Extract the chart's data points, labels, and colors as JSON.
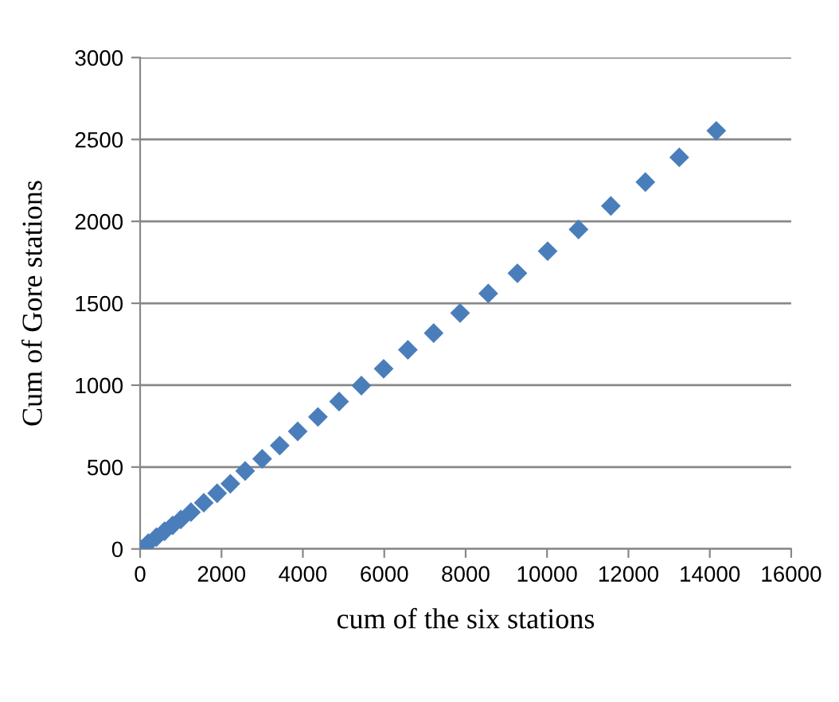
{
  "chart_data": {
    "type": "scatter",
    "xlabel": "cum of the six stations",
    "ylabel": "Cum of Gore stations",
    "x": [
      0,
      200,
      400,
      600,
      800,
      1000,
      1250,
      1565,
      1893,
      2218,
      2582,
      3000,
      3431,
      3873,
      4370,
      4890,
      5438,
      5985,
      6580,
      7214,
      7863,
      8556,
      9272,
      10015,
      10774,
      11568,
      12417,
      13250,
      14160
    ],
    "series": [
      {
        "color": "#4a7ebb",
        "values": [
          0,
          35,
          72,
          108,
          144,
          180,
          225,
          282,
          340,
          398,
          476,
          550,
          631,
          718,
          806,
          900,
          997,
          1100,
          1216,
          1318,
          1440,
          1560,
          1683,
          1818,
          1951,
          2094,
          2240,
          2391,
          2553
        ]
      }
    ],
    "xlim": [
      0,
      16000
    ],
    "xticks": [
      0,
      2000,
      4000,
      6000,
      8000,
      10000,
      12000,
      14000,
      16000
    ],
    "ylim": [
      0,
      3000
    ],
    "yticks": [
      0,
      500,
      1000,
      1500,
      2000,
      2500,
      3000
    ],
    "grid": "y",
    "marker": "diamond",
    "legend": false
  }
}
